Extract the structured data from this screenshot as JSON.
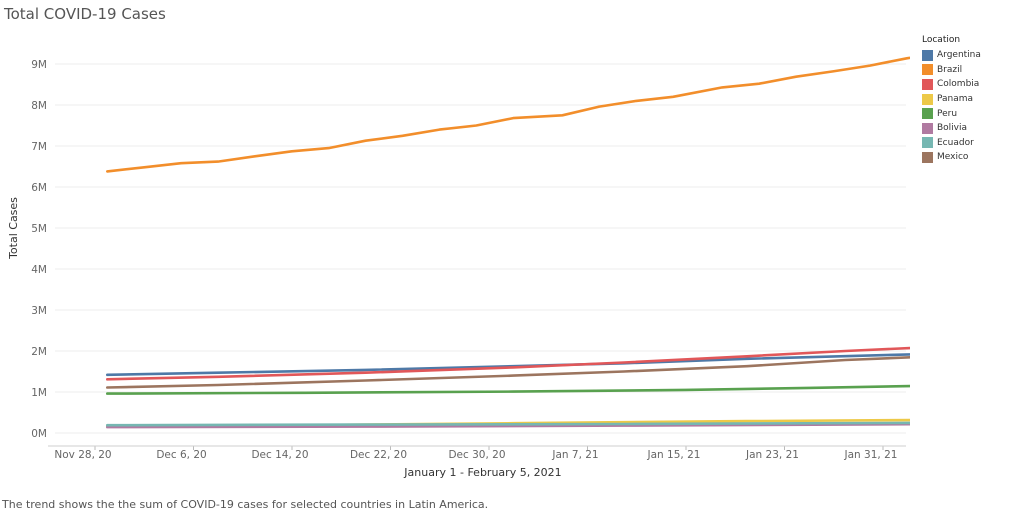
{
  "title": "Total COVID-19 Cases",
  "caption": "The trend shows the the sum of COVID-19 cases for  selected countries in Latin America.",
  "legend": {
    "title": "Location"
  },
  "chart_data": {
    "type": "line",
    "xlabel": "January 1 - February 5, 2021",
    "ylabel": "Total Cases",
    "x_ticks": [
      "Nov 28, 20",
      "Dec 6, 20",
      "Dec 14, 20",
      "Dec 22, 20",
      "Dec 30, 20",
      "Jan 7, 21",
      "Jan 15, 21",
      "Jan 23, 21",
      "Jan 31, 21"
    ],
    "y_ticks": [
      "0M",
      "1M",
      "2M",
      "3M",
      "4M",
      "5M",
      "6M",
      "7M",
      "8M",
      "9M"
    ],
    "ylim": [
      0,
      9500000
    ],
    "x_start": "2020-11-29",
    "x_end": "2021-02-05",
    "grid": true,
    "legend_position": "right",
    "series": [
      {
        "name": "Argentina",
        "color": "#4e79a7",
        "points": [
          [
            "2020-11-29",
            1420000
          ],
          [
            "2020-12-08",
            1470000
          ],
          [
            "2020-12-20",
            1540000
          ],
          [
            "2021-01-01",
            1630000
          ],
          [
            "2021-01-10",
            1700000
          ],
          [
            "2021-01-20",
            1810000
          ],
          [
            "2021-02-05",
            1940000
          ]
        ]
      },
      {
        "name": "Brazil",
        "color": "#f28e2b",
        "points": [
          [
            "2020-11-29",
            6380000
          ],
          [
            "2020-12-02",
            6480000
          ],
          [
            "2020-12-05",
            6580000
          ],
          [
            "2020-12-08",
            6620000
          ],
          [
            "2020-12-11",
            6750000
          ],
          [
            "2020-12-14",
            6870000
          ],
          [
            "2020-12-17",
            6950000
          ],
          [
            "2020-12-20",
            7130000
          ],
          [
            "2020-12-23",
            7250000
          ],
          [
            "2020-12-26",
            7400000
          ],
          [
            "2020-12-29",
            7500000
          ],
          [
            "2021-01-01",
            7680000
          ],
          [
            "2021-01-05",
            7750000
          ],
          [
            "2021-01-08",
            7960000
          ],
          [
            "2021-01-11",
            8100000
          ],
          [
            "2021-01-14",
            8200000
          ],
          [
            "2021-01-18",
            8430000
          ],
          [
            "2021-01-21",
            8520000
          ],
          [
            "2021-01-24",
            8690000
          ],
          [
            "2021-01-27",
            8820000
          ],
          [
            "2021-01-30",
            8960000
          ],
          [
            "2021-02-02",
            9140000
          ],
          [
            "2021-02-05",
            9280000
          ]
        ]
      },
      {
        "name": "Colombia",
        "color": "#e15759",
        "points": [
          [
            "2020-11-29",
            1310000
          ],
          [
            "2020-12-08",
            1370000
          ],
          [
            "2020-12-20",
            1470000
          ],
          [
            "2021-01-01",
            1600000
          ],
          [
            "2021-01-10",
            1720000
          ],
          [
            "2021-01-20",
            1870000
          ],
          [
            "2021-01-28",
            2000000
          ],
          [
            "2021-02-05",
            2110000
          ]
        ]
      },
      {
        "name": "Panama",
        "color": "#edc948",
        "points": [
          [
            "2020-11-29",
            160000
          ],
          [
            "2020-12-15",
            190000
          ],
          [
            "2021-01-01",
            240000
          ],
          [
            "2021-01-20",
            290000
          ],
          [
            "2021-02-05",
            320000
          ]
        ]
      },
      {
        "name": "Peru",
        "color": "#59a14f",
        "points": [
          [
            "2020-11-29",
            960000
          ],
          [
            "2020-12-15",
            980000
          ],
          [
            "2021-01-01",
            1010000
          ],
          [
            "2021-01-15",
            1050000
          ],
          [
            "2021-01-25",
            1100000
          ],
          [
            "2021-02-05",
            1160000
          ]
        ]
      },
      {
        "name": "Bolivia",
        "color": "#b07aa1",
        "points": [
          [
            "2020-11-29",
            145000
          ],
          [
            "2020-12-20",
            155000
          ],
          [
            "2021-01-10",
            180000
          ],
          [
            "2021-02-05",
            220000
          ]
        ]
      },
      {
        "name": "Ecuador",
        "color": "#76b7b2",
        "points": [
          [
            "2020-11-29",
            190000
          ],
          [
            "2020-12-20",
            205000
          ],
          [
            "2021-01-10",
            220000
          ],
          [
            "2021-02-05",
            250000
          ]
        ]
      },
      {
        "name": "Mexico",
        "color": "#9c755f",
        "points": [
          [
            "2020-11-29",
            1110000
          ],
          [
            "2020-12-08",
            1170000
          ],
          [
            "2020-12-20",
            1280000
          ],
          [
            "2021-01-01",
            1400000
          ],
          [
            "2021-01-10",
            1500000
          ],
          [
            "2021-01-20",
            1630000
          ],
          [
            "2021-01-28",
            1780000
          ],
          [
            "2021-02-05",
            1880000
          ]
        ]
      }
    ]
  }
}
